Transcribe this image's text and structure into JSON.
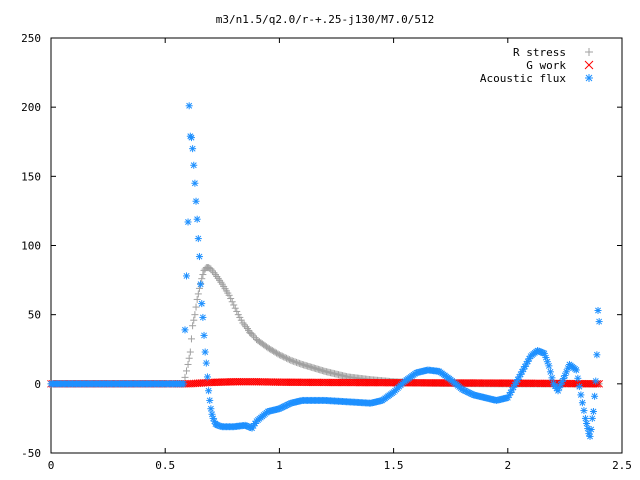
{
  "chart_data": {
    "type": "scatter",
    "title": "m3/n1.5/q2.0/r-+.25-j130/M7.0/512",
    "xlabel": "",
    "ylabel": "",
    "xlim": [
      0,
      2.5
    ],
    "ylim": [
      -50,
      250
    ],
    "xticks": [
      "0",
      "0.5",
      "1",
      "1.5",
      "2",
      "2.5"
    ],
    "yticks": [
      "-50",
      "0",
      "50",
      "100",
      "150",
      "200",
      "250"
    ],
    "grid": false,
    "legend": "top-right",
    "series": [
      {
        "name": "R stress",
        "marker": "+",
        "color": "#a0a0a0",
        "x": [
          0,
          0.1,
          0.2,
          0.3,
          0.4,
          0.5,
          0.58,
          0.6,
          0.61,
          0.62,
          0.63,
          0.64,
          0.65,
          0.66,
          0.67,
          0.68,
          0.69,
          0.7,
          0.72,
          0.75,
          0.78,
          0.8,
          0.82,
          0.84,
          0.86,
          0.87,
          0.88,
          0.9,
          0.95,
          1.0,
          1.05,
          1.1,
          1.2,
          1.3,
          1.4,
          1.5,
          1.6,
          1.7,
          1.8,
          1.9,
          2.0,
          2.1,
          2.2,
          2.3,
          2.4
        ],
        "y": [
          0,
          0,
          0,
          0,
          0,
          0,
          0,
          14,
          23,
          42,
          50,
          61,
          69,
          76,
          82,
          84,
          84,
          83,
          79,
          72,
          64,
          57,
          50,
          44,
          40,
          37,
          36,
          32,
          26,
          21,
          17,
          14,
          9,
          5,
          3,
          1.5,
          0.8,
          0.4,
          0.2,
          0.1,
          0,
          0,
          0,
          0,
          0
        ]
      },
      {
        "name": "G work",
        "marker": "x",
        "color": "#ff0000",
        "x": [
          0,
          0.5,
          0.6,
          0.65,
          0.7,
          0.8,
          0.9,
          1.0,
          1.2,
          1.5,
          2.0,
          2.2,
          2.4
        ],
        "y": [
          0,
          0,
          0,
          0.5,
          1,
          1.5,
          1.5,
          1.2,
          1,
          0.8,
          0.5,
          0.3,
          0
        ]
      },
      {
        "name": "Acoustic flux",
        "marker": "*",
        "color": "#1e90ff",
        "x": [
          0,
          0.1,
          0.2,
          0.3,
          0.4,
          0.5,
          0.58,
          0.6,
          0.605,
          0.61,
          0.615,
          0.62,
          0.625,
          0.63,
          0.635,
          0.64,
          0.645,
          0.65,
          0.655,
          0.66,
          0.665,
          0.67,
          0.675,
          0.68,
          0.685,
          0.69,
          0.695,
          0.7,
          0.705,
          0.71,
          0.72,
          0.73,
          0.75,
          0.8,
          0.85,
          0.88,
          0.9,
          0.95,
          1.0,
          1.05,
          1.1,
          1.2,
          1.3,
          1.4,
          1.45,
          1.5,
          1.55,
          1.6,
          1.65,
          1.7,
          1.75,
          1.8,
          1.85,
          1.9,
          1.95,
          2.0,
          2.05,
          2.1,
          2.13,
          2.16,
          2.18,
          2.2,
          2.22,
          2.25,
          2.27,
          2.3,
          2.32,
          2.34,
          2.355,
          2.36,
          2.365,
          2.37,
          2.375,
          2.38,
          2.385,
          2.39,
          2.395,
          2.4
        ],
        "y": [
          0,
          0,
          0,
          0,
          0,
          0,
          0,
          117,
          201,
          179,
          178,
          170,
          158,
          145,
          132,
          119,
          105,
          92,
          72,
          58,
          48,
          35,
          23,
          15,
          5,
          -5,
          -12,
          -18,
          -22,
          -25,
          -29,
          -30,
          -31,
          -31,
          -30,
          -32,
          -27,
          -20,
          -18,
          -14,
          -12,
          -12,
          -13,
          -14,
          -12,
          -6,
          2,
          8,
          10,
          9,
          3,
          -4,
          -8,
          -10,
          -12,
          -10,
          5,
          20,
          24,
          22,
          13,
          0,
          -5,
          6,
          14,
          10,
          -8,
          -25,
          -36,
          -38,
          -33,
          -25,
          -20,
          -9,
          2,
          21,
          53,
          45
        ]
      }
    ]
  }
}
